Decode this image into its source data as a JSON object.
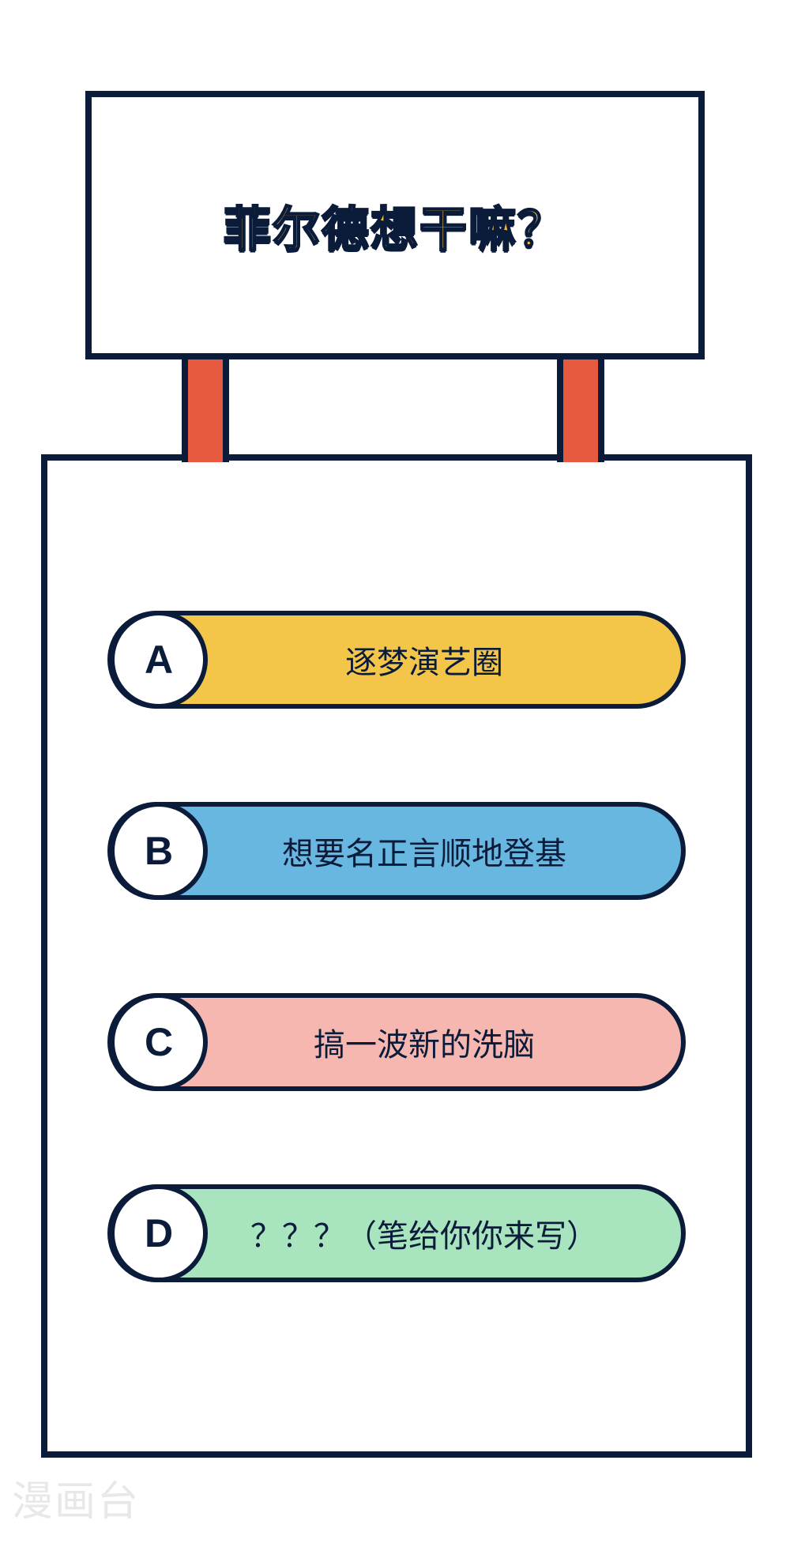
{
  "question": {
    "text": "菲尔德想干嘛？"
  },
  "options": [
    {
      "letter": "A",
      "text": "逐梦演艺圈",
      "bg_color": "#f3c649"
    },
    {
      "letter": "B",
      "text": "想要名正言顺地登基",
      "bg_color": "#67b7e1"
    },
    {
      "letter": "C",
      "text": "搞一波新的洗脑",
      "bg_color": "#f5b7af"
    },
    {
      "letter": "D",
      "text": "？？？（笔给你你来写）",
      "bg_color": "#a8e4bd"
    }
  ],
  "colors": {
    "border": "#0b1b3a",
    "pillar": "#e85a3f",
    "question_text": "#f1b93e",
    "background": "#ffffff",
    "watermark": "#e8e8e8"
  },
  "watermark": "漫画台"
}
